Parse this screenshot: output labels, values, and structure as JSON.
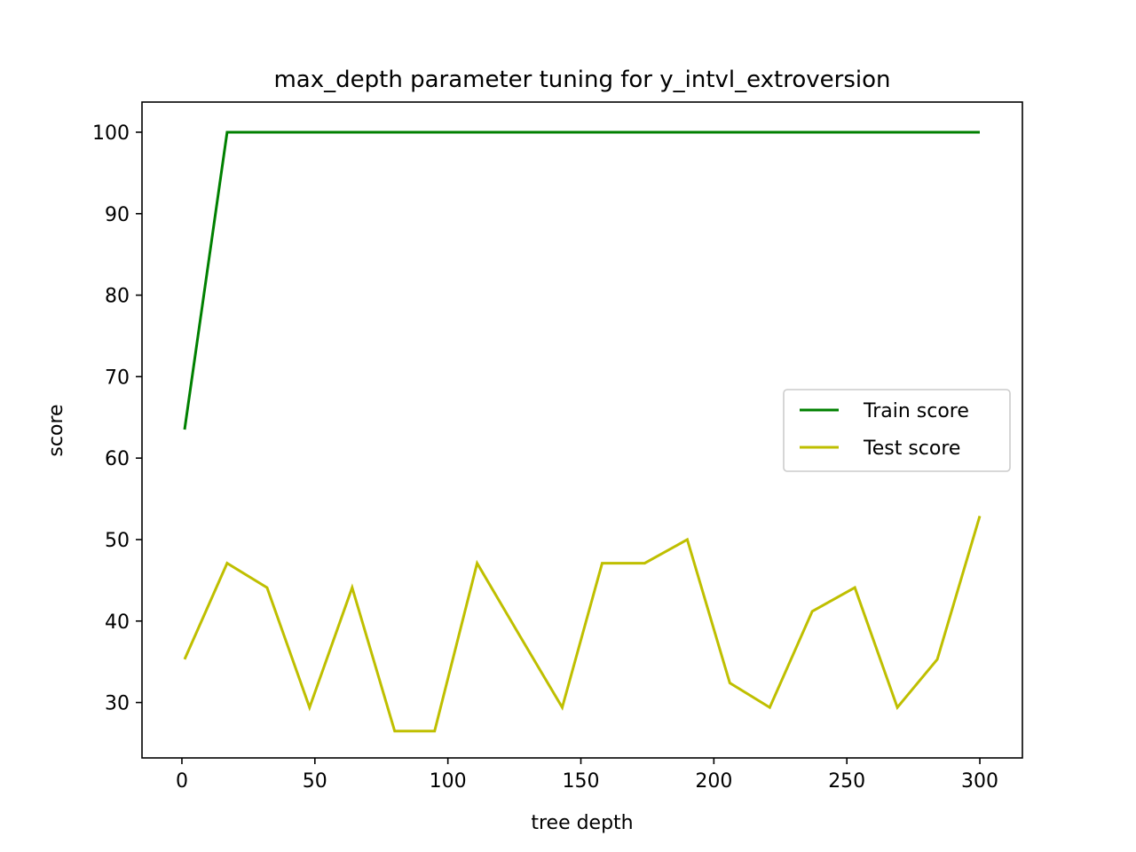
{
  "chart_data": {
    "type": "line",
    "title": "max_depth parameter tuning for y_intvl_extroversion",
    "xlabel": "tree depth",
    "ylabel": "score",
    "xlim": [
      -15,
      316
    ],
    "ylim": [
      23.2,
      103.7
    ],
    "xticks": [
      0,
      50,
      100,
      150,
      200,
      250,
      300
    ],
    "yticks": [
      30,
      40,
      50,
      60,
      70,
      80,
      90,
      100
    ],
    "grid": false,
    "legend_position": "center-right",
    "x": [
      1,
      17,
      32,
      48,
      64,
      80,
      95,
      111,
      127,
      143,
      158,
      174,
      190,
      206,
      221,
      237,
      253,
      269,
      284,
      300
    ],
    "series": [
      {
        "name": "Train score",
        "color": "#008000",
        "values": [
          63.5,
          100,
          100,
          100,
          100,
          100,
          100,
          100,
          100,
          100,
          100,
          100,
          100,
          100,
          100,
          100,
          100,
          100,
          100,
          100
        ]
      },
      {
        "name": "Test score",
        "color": "#bfbf00",
        "values": [
          35.3,
          47.1,
          44.1,
          29.4,
          44.1,
          26.5,
          26.5,
          47.1,
          38.2,
          29.4,
          47.1,
          47.1,
          50.0,
          32.4,
          29.4,
          41.2,
          44.1,
          29.4,
          35.3,
          52.9
        ]
      }
    ]
  }
}
